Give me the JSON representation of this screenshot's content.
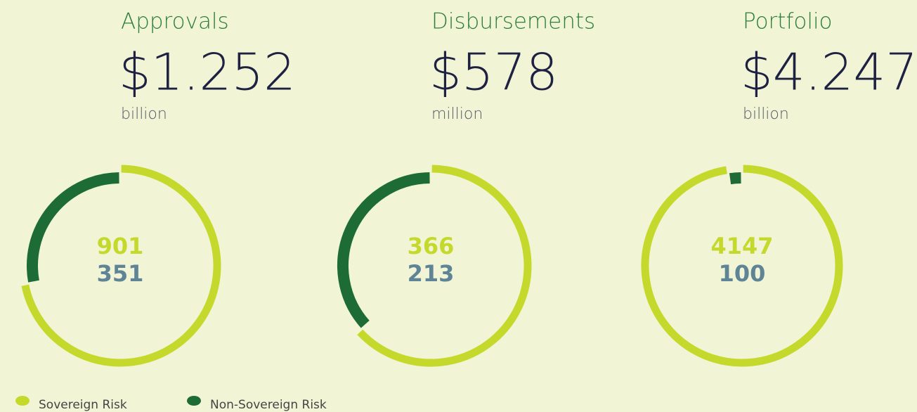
{
  "legend": [
    {
      "name": "Sovereign Risk",
      "color": "#c5d92d"
    },
    {
      "name": "Non-Sovereign Risk",
      "color": "#1d6b35"
    }
  ],
  "chart_data": [
    {
      "type": "donut",
      "title": "Approvals",
      "total": "$1.252",
      "unit": "billion",
      "values": [
        901,
        351
      ]
    },
    {
      "type": "donut",
      "title": "Disbursements",
      "total": "$578",
      "unit": "million",
      "values": [
        366,
        213
      ]
    },
    {
      "type": "donut",
      "title": "Portfolio",
      "total": "$4.247",
      "unit": "billion",
      "values": [
        4147,
        100
      ]
    }
  ]
}
